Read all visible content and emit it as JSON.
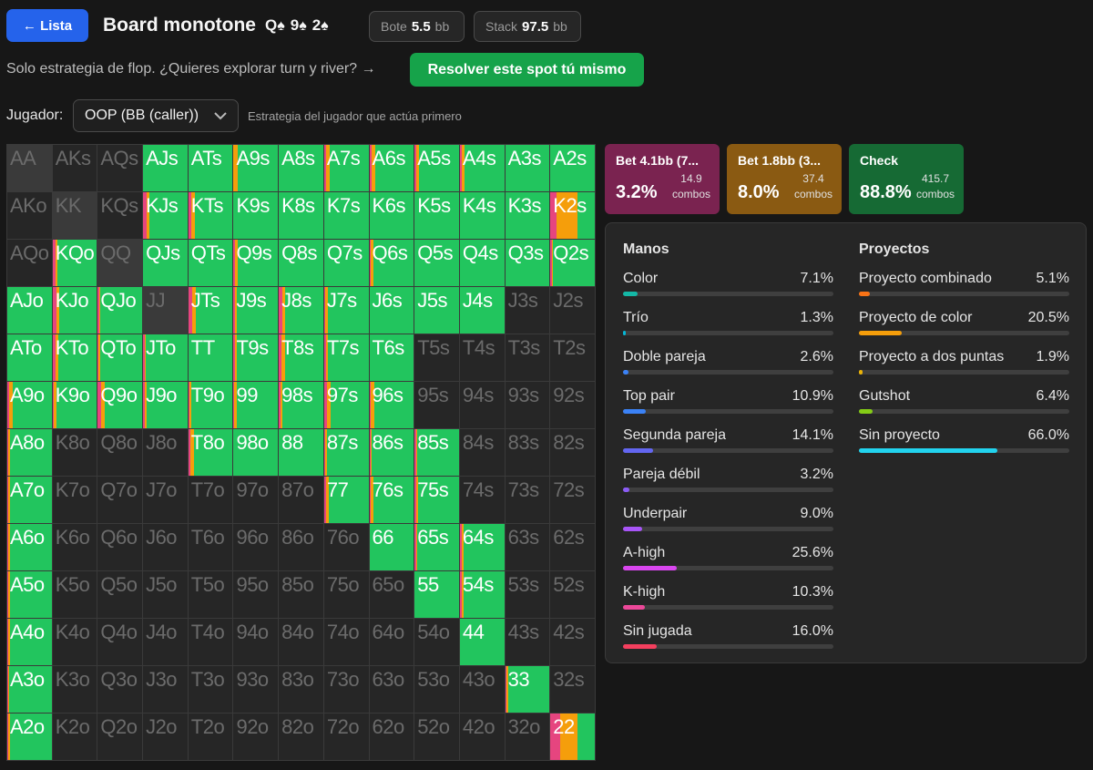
{
  "header": {
    "back_label": "← Lista",
    "title": "Board monotone",
    "board": [
      {
        "rank": "Q",
        "suit": "♠"
      },
      {
        "rank": "9",
        "suit": "♠"
      },
      {
        "rank": "2",
        "suit": "♠"
      }
    ],
    "pot_label": "Bote",
    "pot_value": "5.5",
    "pot_unit": "bb",
    "stack_label": "Stack",
    "stack_value": "97.5",
    "stack_unit": "bb"
  },
  "subheader": {
    "text": "Solo estrategia de flop. ¿Quieres explorar turn y river? →",
    "solve_label": "Resolver este spot tú mismo"
  },
  "player": {
    "label": "Jugador:",
    "selected": "OOP (BB (caller))",
    "hint": "Estrategia del jugador que actúa primero"
  },
  "colors": {
    "bet_big": "#e6457f",
    "bet_small": "#f59e0b",
    "check": "#22c55e"
  },
  "grid": {
    "ranks": [
      "A",
      "K",
      "Q",
      "J",
      "T",
      "9",
      "8",
      "7",
      "6",
      "5",
      "4",
      "3",
      "2"
    ],
    "rows": [
      [
        "x",
        "x",
        "x",
        "1",
        "1",
        [
          0,
          0.1
        ],
        "1",
        [
          0.04,
          0.08
        ],
        [
          0.05,
          0.08
        ],
        [
          0.03,
          0.06
        ],
        [
          0.05,
          0.06
        ],
        "1",
        "1"
      ],
      [
        "x",
        "x",
        "x",
        [
          0.08,
          0.07
        ],
        [
          0.07,
          0.08
        ],
        "1",
        "1",
        "1",
        "1",
        "1",
        "1",
        "1",
        [
          0.14,
          0.46
        ]
      ],
      [
        "x",
        [
          0.06,
          0.04
        ],
        "x",
        "1",
        "1",
        [
          0.04,
          0.06
        ],
        "1",
        "1",
        [
          0.03,
          0.06
        ],
        "1",
        "1",
        "1",
        [
          0.03,
          0.03
        ]
      ],
      [
        "1",
        [
          0.08,
          0.08
        ],
        [
          0.03,
          0.03
        ],
        "x",
        [
          0.08,
          0.08
        ],
        [
          0.04,
          0.04
        ],
        [
          0.07,
          0.08
        ],
        [
          0.03,
          0.06
        ],
        "1",
        "1",
        "1",
        "x",
        "x"
      ],
      [
        "1",
        [
          0.06,
          0.06
        ],
        [
          0.02,
          0.03
        ],
        [
          0.03,
          0.03
        ],
        "1",
        [
          0.04,
          0.04
        ],
        [
          0.06,
          0.08
        ],
        [
          0.04,
          0.04
        ],
        "1",
        "x",
        "x",
        "x",
        "x"
      ],
      [
        [
          0.04,
          0.08
        ],
        [
          0.03,
          0.06
        ],
        [
          0.08,
          0.08
        ],
        [
          0.04,
          0.04
        ],
        [
          0.03,
          0.03
        ],
        [
          0.02,
          0.06
        ],
        [
          0.04,
          0.04
        ],
        [
          0.06,
          0.08
        ],
        [
          0.04,
          0.08
        ],
        "x",
        "x",
        "x",
        "x"
      ],
      [
        [
          0.02,
          0.04
        ],
        "x",
        "x",
        "x",
        [
          0.04,
          0.08
        ],
        "1",
        "1",
        [
          0.03,
          0.03
        ],
        [
          0.03,
          0.03
        ],
        [
          0.03,
          0.03
        ],
        "x",
        "x",
        "x"
      ],
      [
        [
          0.03,
          0.04
        ],
        "x",
        "x",
        "x",
        "x",
        "x",
        "x",
        [
          0.05,
          0.05
        ],
        [
          0.04,
          0.06
        ],
        [
          0.04,
          0.04
        ],
        "x",
        "x",
        "x"
      ],
      [
        [
          0.03,
          0.04
        ],
        "x",
        "x",
        "x",
        "x",
        "x",
        "x",
        "x",
        "1",
        [
          0.03,
          0.03
        ],
        [
          0.04,
          0.04
        ],
        "x",
        "x"
      ],
      [
        [
          0.03,
          0.04
        ],
        "x",
        "x",
        "x",
        "x",
        "x",
        "x",
        "x",
        "x",
        "1",
        [
          0.04,
          0.04
        ],
        "x",
        "x"
      ],
      [
        [
          0.03,
          0.04
        ],
        "x",
        "x",
        "x",
        "x",
        "x",
        "x",
        "x",
        "x",
        "x",
        "1",
        "x",
        "x"
      ],
      [
        [
          0.02,
          0.03
        ],
        "x",
        "x",
        "x",
        "x",
        "x",
        "x",
        "x",
        "x",
        "x",
        "x",
        [
          0.03,
          0.04
        ],
        "x"
      ],
      [
        [
          0.03,
          0.04
        ],
        "x",
        "x",
        "x",
        "x",
        "x",
        "x",
        "x",
        "x",
        "x",
        "x",
        "x",
        [
          0.22,
          0.38
        ]
      ]
    ]
  },
  "actions": [
    {
      "name": "Bet 4.1bb (7...",
      "pct": "3.2%",
      "combos_value": "14.9",
      "combos_label": "combos",
      "color": "#7a2350"
    },
    {
      "name": "Bet 1.8bb (3...",
      "pct": "8.0%",
      "combos_value": "37.4",
      "combos_label": "combos",
      "color": "#8a5a12"
    },
    {
      "name": "Check",
      "pct": "88.8%",
      "combos_value": "415.7",
      "combos_label": "combos",
      "color": "#166a34"
    }
  ],
  "hands": {
    "title": "Manos",
    "items": [
      {
        "label": "Color",
        "value": "7.1%",
        "frac": 0.071,
        "color": "#14b8a6"
      },
      {
        "label": "Trío",
        "value": "1.3%",
        "frac": 0.013,
        "color": "#06b6d4"
      },
      {
        "label": "Doble pareja",
        "value": "2.6%",
        "frac": 0.026,
        "color": "#3b82f6"
      },
      {
        "label": "Top pair",
        "value": "10.9%",
        "frac": 0.109,
        "color": "#3b82f6"
      },
      {
        "label": "Segunda pareja",
        "value": "14.1%",
        "frac": 0.141,
        "color": "#6366f1"
      },
      {
        "label": "Pareja débil",
        "value": "3.2%",
        "frac": 0.032,
        "color": "#8b5cf6"
      },
      {
        "label": "Underpair",
        "value": "9.0%",
        "frac": 0.09,
        "color": "#a855f7"
      },
      {
        "label": "A-high",
        "value": "25.6%",
        "frac": 0.256,
        "color": "#d946ef"
      },
      {
        "label": "K-high",
        "value": "10.3%",
        "frac": 0.103,
        "color": "#ec4899"
      },
      {
        "label": "Sin jugada",
        "value": "16.0%",
        "frac": 0.16,
        "color": "#f43f5e"
      }
    ]
  },
  "draws": {
    "title": "Proyectos",
    "items": [
      {
        "label": "Proyecto combinado",
        "value": "5.1%",
        "frac": 0.051,
        "color": "#f97316"
      },
      {
        "label": "Proyecto de color",
        "value": "20.5%",
        "frac": 0.205,
        "color": "#f59e0b"
      },
      {
        "label": "Proyecto a dos puntas",
        "value": "1.9%",
        "frac": 0.019,
        "color": "#eab308"
      },
      {
        "label": "Gutshot",
        "value": "6.4%",
        "frac": 0.064,
        "color": "#84cc16"
      },
      {
        "label": "Sin proyecto",
        "value": "66.0%",
        "frac": 0.66,
        "color": "#22d3ee"
      }
    ]
  }
}
